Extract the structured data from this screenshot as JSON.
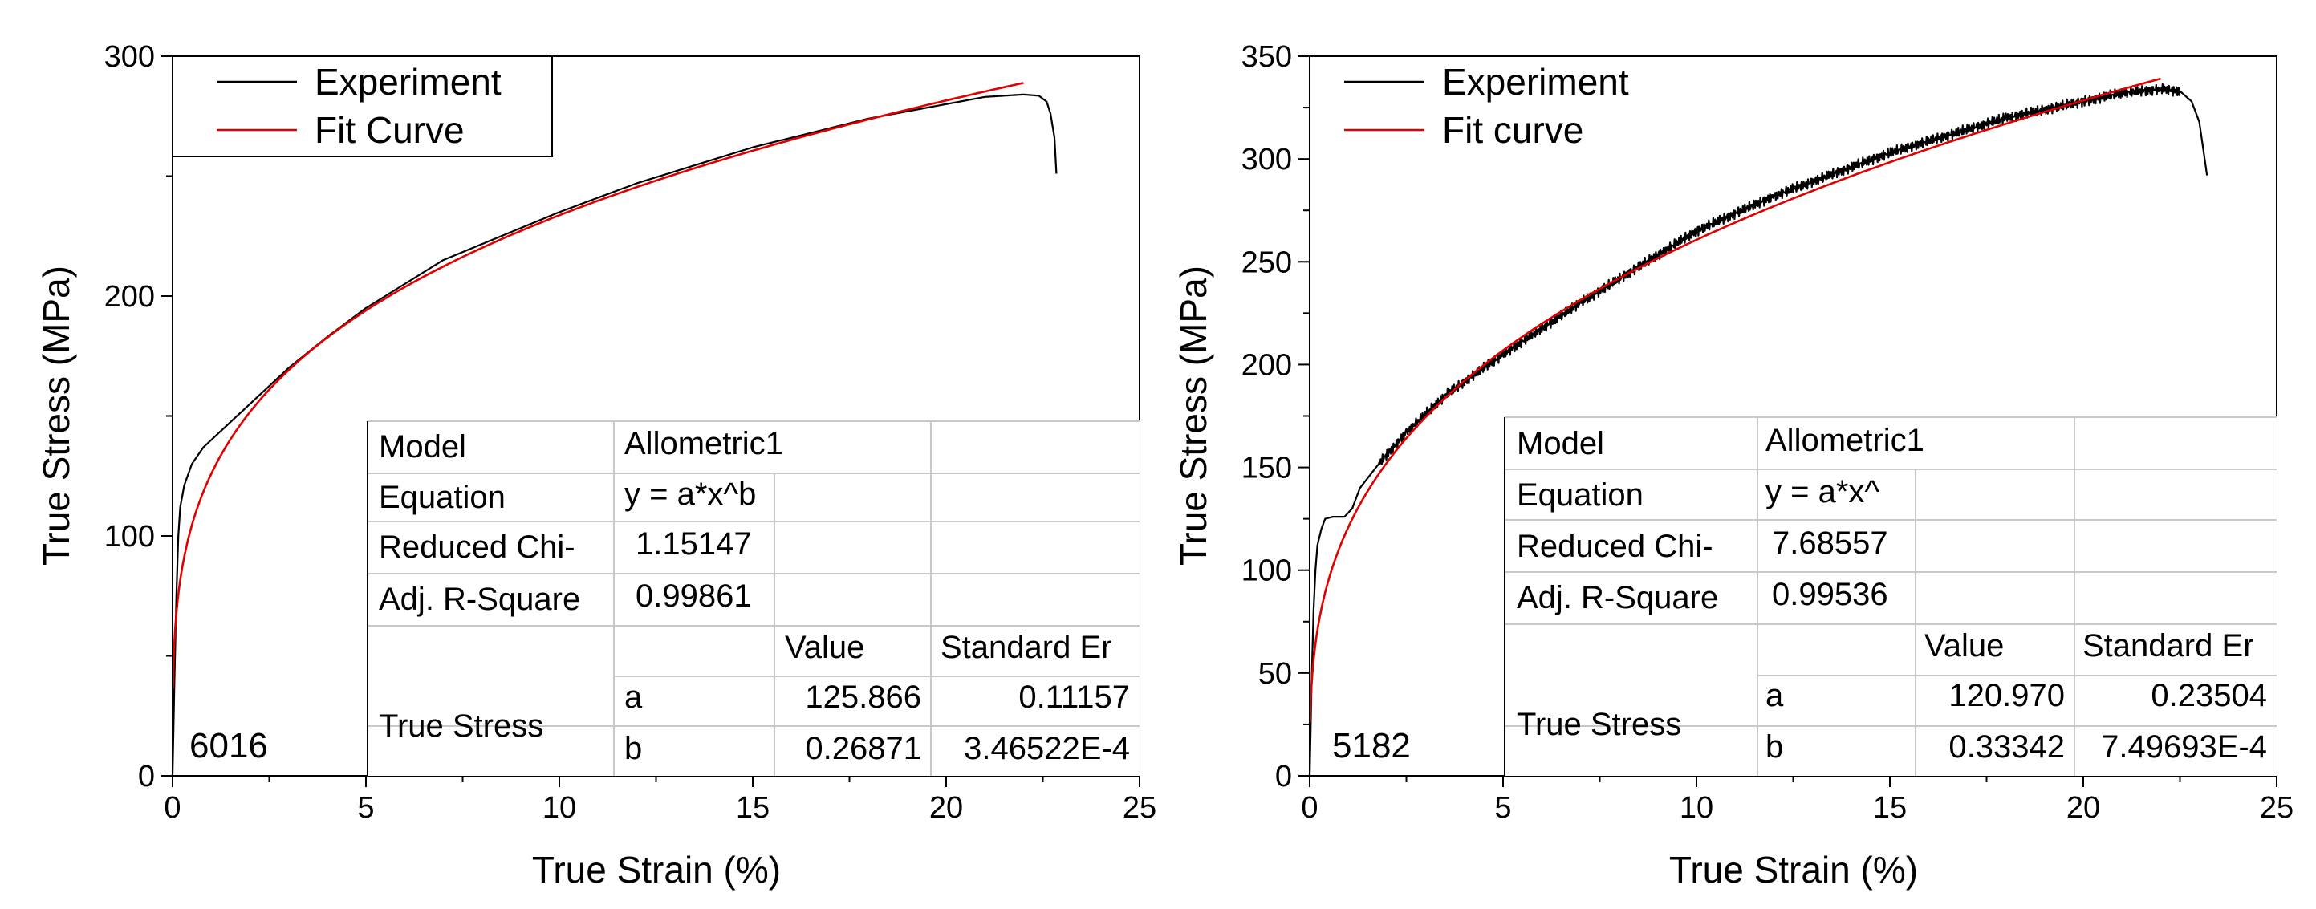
{
  "chart_data": [
    {
      "id": "left",
      "type": "line",
      "xlabel": "True Strain (%)",
      "ylabel": "True Stress (MPa)",
      "xlim": [
        0,
        25
      ],
      "ylim": [
        0,
        300
      ],
      "xticks": [
        "0",
        "5",
        "10",
        "15",
        "20",
        "25"
      ],
      "yticks": [
        "0",
        "100",
        "200",
        "300"
      ],
      "legend": {
        "placement": "top-left",
        "entries": [
          "Experiment",
          "Fit Curve"
        ]
      },
      "sample_label": "6016",
      "series": [
        {
          "name": "Experiment",
          "color": "#000000",
          "x": [
            0,
            0.05,
            0.1,
            0.15,
            0.2,
            0.3,
            0.5,
            0.8,
            1.2,
            2,
            3,
            4,
            5,
            7,
            10,
            12,
            15,
            18,
            20,
            21,
            22,
            22.4,
            22.6,
            22.7,
            22.8,
            22.85
          ],
          "y": [
            0,
            40,
            75,
            100,
            112,
            121,
            130,
            137,
            143,
            155,
            170,
            183,
            195,
            215,
            235,
            247,
            262,
            274,
            280,
            283,
            284,
            283.5,
            281,
            276,
            266,
            251
          ]
        },
        {
          "name": "Fit Curve",
          "color": "#e00000",
          "model": {
            "type": "power",
            "a": 125.866,
            "b": 0.26871
          },
          "x_range": [
            0.01,
            22
          ]
        }
      ],
      "fit_table": {
        "rows": [
          [
            "Model",
            "Allometric1"
          ],
          [
            "Equation",
            "y = a*x^b"
          ],
          [
            "Reduced Chi-",
            "1.15147"
          ],
          [
            "Adj. R-Square",
            "0.99861"
          ]
        ],
        "param_header": [
          "Value",
          "Standard Er"
        ],
        "param_group": "True Stress",
        "params": [
          [
            "a",
            "125.866",
            "0.11157"
          ],
          [
            "b",
            "0.26871",
            "3.46522E-4"
          ]
        ]
      }
    },
    {
      "id": "right",
      "type": "line",
      "xlabel": "True Strain (%)",
      "ylabel": "True Stress (MPa)",
      "xlim": [
        0,
        25
      ],
      "ylim": [
        0,
        350
      ],
      "xticks": [
        "0",
        "5",
        "10",
        "15",
        "20",
        "25"
      ],
      "yticks": [
        "0",
        "50",
        "100",
        "150",
        "200",
        "250",
        "300",
        "350"
      ],
      "legend": {
        "placement": "top-left",
        "entries": [
          "Experiment",
          "Fit curve"
        ]
      },
      "sample_label": "5182",
      "series": [
        {
          "name": "Experiment",
          "color": "#000000",
          "x": [
            0,
            0.05,
            0.1,
            0.15,
            0.2,
            0.3,
            0.4,
            0.6,
            0.9,
            1.1,
            1.3,
            1.8,
            2.5,
            3.5,
            5,
            7,
            10,
            12,
            15,
            18,
            20,
            21,
            22,
            22.5,
            22.8,
            23,
            23.1,
            23.2
          ],
          "y": [
            0,
            45,
            80,
            100,
            112,
            120,
            125,
            126,
            126,
            130,
            140,
            152,
            167,
            185,
            205,
            230,
            265,
            282,
            303,
            320,
            328,
            332,
            334,
            333,
            328,
            318,
            305,
            292
          ]
        },
        {
          "name": "Fit Curve",
          "color": "#e00000",
          "model": {
            "type": "power",
            "a": 120.97,
            "b": 0.33342
          },
          "x_range": [
            0.01,
            22
          ]
        }
      ],
      "fit_table": {
        "rows": [
          [
            "Model",
            "Allometric1"
          ],
          [
            "Equation",
            "y = a*x^"
          ],
          [
            "Reduced Chi-",
            "7.68557"
          ],
          [
            "Adj. R-Square",
            "0.99536"
          ]
        ],
        "param_header": [
          "Value",
          "Standard Er"
        ],
        "param_group": "True Stress",
        "params": [
          [
            "a",
            "120.970",
            "0.23504"
          ],
          [
            "b",
            "0.33342",
            "7.49693E-4"
          ]
        ]
      }
    }
  ]
}
